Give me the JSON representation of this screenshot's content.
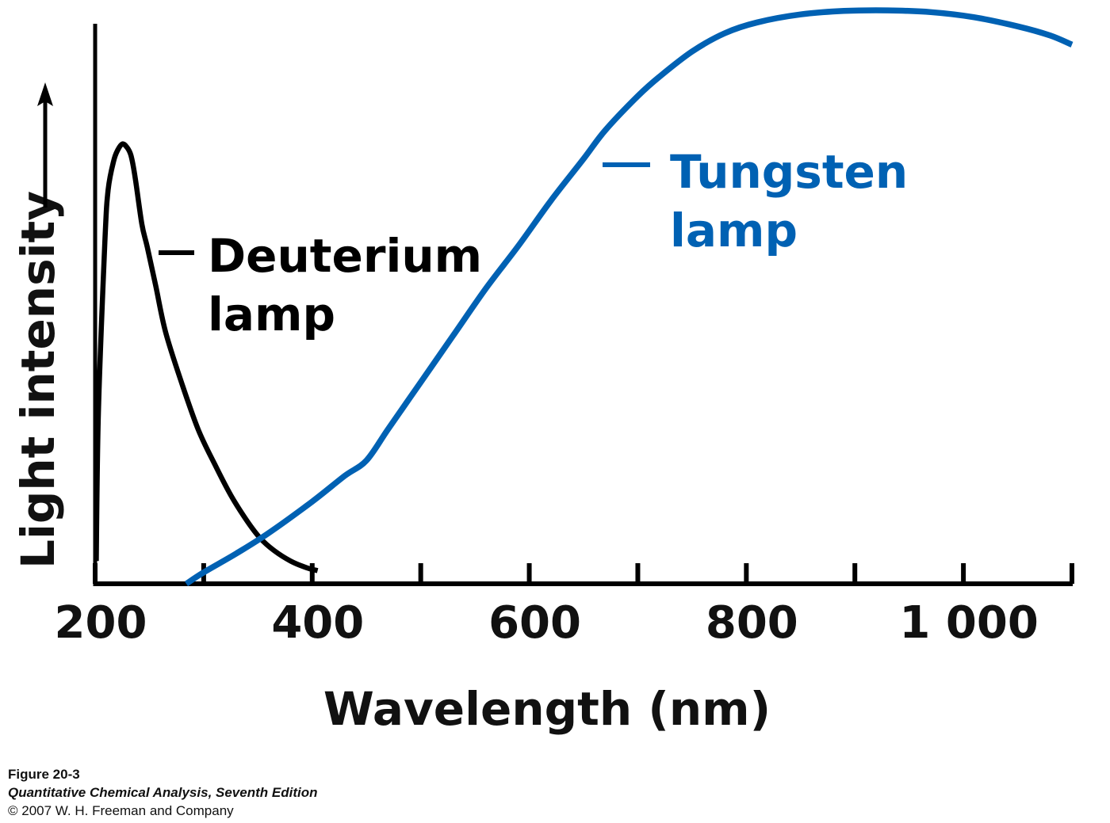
{
  "chart_data": {
    "type": "line",
    "xlabel": "Wavelength (nm)",
    "ylabel": "Light intensity",
    "xlim": [
      200,
      1100
    ],
    "ylim": [
      0,
      100
    ],
    "x_ticks": [
      200,
      300,
      400,
      500,
      600,
      700,
      800,
      900,
      1000
    ],
    "x_tick_labels": [
      {
        "value": 200,
        "label": "200"
      },
      {
        "value": 400,
        "label": "400"
      },
      {
        "value": 600,
        "label": "600"
      },
      {
        "value": 800,
        "label": "800"
      },
      {
        "value": 1000,
        "label": "1 000"
      }
    ],
    "grid": false,
    "legend": "none (direct labels)",
    "series": [
      {
        "name": "Deuterium lamp",
        "label_lines": [
          "Deuterium",
          "lamp"
        ],
        "color": "#000000",
        "x": [
          201,
          203,
          209,
          212,
          217,
          221,
          225,
          229,
          233,
          237,
          243,
          248,
          256,
          265,
          280,
          295,
          310,
          325,
          340,
          352,
          365,
          380,
          395,
          405
        ],
        "y": [
          4,
          30,
          60,
          69,
          74,
          76,
          77,
          76.5,
          75,
          71,
          63,
          59,
          52,
          44,
          35,
          27,
          21,
          15.5,
          11,
          8,
          5.8,
          4,
          2.8,
          2.3
        ]
      },
      {
        "name": "Tungsten lamp",
        "label_lines": [
          "Tungsten",
          "lamp"
        ],
        "color": "#0061b3",
        "x": [
          284,
          300,
          330,
          360,
          400,
          430,
          450,
          470,
          500,
          530,
          560,
          590,
          620,
          650,
          670,
          700,
          720,
          750,
          780,
          810,
          850,
          890,
          930,
          970,
          1010,
          1050,
          1080,
          1100
        ],
        "y": [
          0,
          2,
          5.3,
          8.9,
          14.4,
          18.9,
          21.6,
          27.1,
          35.3,
          43.5,
          51.7,
          59.2,
          67.1,
          74.4,
          79.4,
          85.4,
          88.8,
          93.2,
          96.4,
          98.3,
          99.7,
          100.3,
          100.4,
          100.1,
          99.2,
          97.6,
          96.0,
          94.4
        ]
      }
    ],
    "annotations": [
      {
        "series": "Deuterium lamp",
        "text": "Deuterium lamp"
      },
      {
        "series": "Tungsten lamp",
        "text": "Tungsten lamp"
      }
    ]
  },
  "caption": {
    "figure": "Figure 20-3",
    "book": "Quantitative Chemical Analysis, Seventh Edition",
    "copyright": "© 2007 W. H. Freeman and Company"
  },
  "colors": {
    "axis": "#000000",
    "deuterium": "#000000",
    "tungsten": "#0061b3"
  }
}
